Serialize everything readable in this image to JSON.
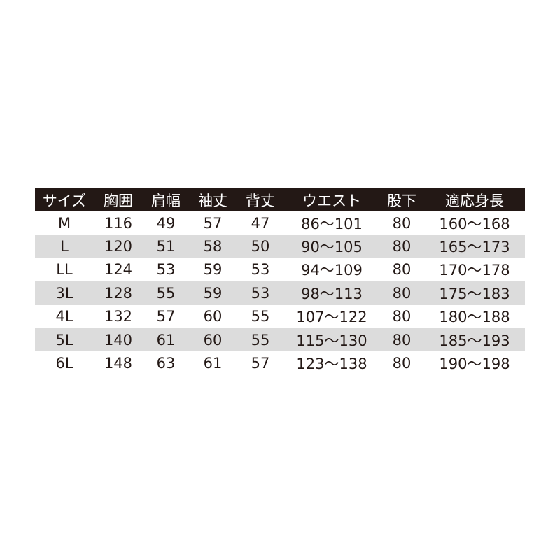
{
  "table": {
    "headers": [
      "サイズ",
      "胸囲",
      "肩幅",
      "袖丈",
      "背丈",
      "ウエスト",
      "股下",
      "適応身長"
    ],
    "rows": [
      [
        "M",
        "116",
        "49",
        "57",
        "47",
        "86〜101",
        "80",
        "160〜168"
      ],
      [
        "L",
        "120",
        "51",
        "58",
        "50",
        "90〜105",
        "80",
        "165〜173"
      ],
      [
        "LL",
        "124",
        "53",
        "59",
        "53",
        "94〜109",
        "80",
        "170〜178"
      ],
      [
        "3L",
        "128",
        "55",
        "59",
        "53",
        "98〜113",
        "80",
        "175〜183"
      ],
      [
        "4L",
        "132",
        "57",
        "60",
        "55",
        "107〜122",
        "80",
        "180〜188"
      ],
      [
        "5L",
        "140",
        "61",
        "60",
        "55",
        "115〜130",
        "80",
        "185〜193"
      ],
      [
        "6L",
        "148",
        "63",
        "61",
        "57",
        "123〜138",
        "80",
        "190〜198"
      ]
    ]
  },
  "colors": {
    "header_bg": "#231815",
    "alt_row_bg": "#dcdcdc",
    "text": "#231815"
  }
}
